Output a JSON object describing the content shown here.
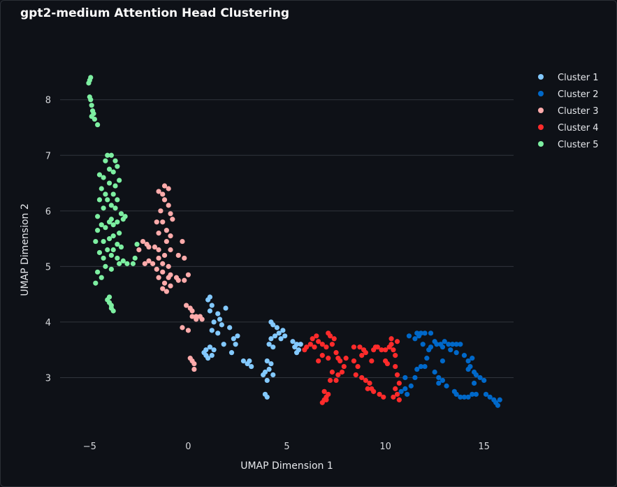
{
  "chart_data": {
    "type": "scatter",
    "title": "gpt2-medium Attention Head Clustering",
    "xlabel": "UMAP Dimension 1",
    "ylabel": "UMAP Dimension 2",
    "xlim": [
      -6.5,
      16.5
    ],
    "ylim": [
      2.0,
      8.6
    ],
    "xticks": [
      -5,
      0,
      5,
      10,
      15
    ],
    "yticks": [
      3,
      4,
      5,
      6,
      7,
      8
    ],
    "grid": "horizontal",
    "legend_position": "top-right",
    "series": [
      {
        "name": "Cluster 1",
        "color": "#83c9ff",
        "points": [
          [
            1.0,
            4.4
          ],
          [
            1.1,
            4.45
          ],
          [
            1.2,
            4.3
          ],
          [
            1.1,
            4.2
          ],
          [
            1.5,
            4.15
          ],
          [
            1.6,
            4.05
          ],
          [
            1.9,
            4.25
          ],
          [
            1.3,
            4.0
          ],
          [
            1.7,
            3.95
          ],
          [
            1.2,
            3.85
          ],
          [
            1.5,
            3.8
          ],
          [
            2.1,
            3.9
          ],
          [
            2.3,
            3.7
          ],
          [
            1.8,
            3.6
          ],
          [
            2.4,
            3.6
          ],
          [
            1.1,
            3.55
          ],
          [
            1.3,
            3.5
          ],
          [
            2.2,
            3.45
          ],
          [
            0.8,
            3.45
          ],
          [
            0.9,
            3.4
          ],
          [
            1.0,
            3.35
          ],
          [
            1.2,
            3.4
          ],
          [
            0.9,
            3.5
          ],
          [
            2.5,
            3.75
          ],
          [
            3.0,
            3.25
          ],
          [
            3.1,
            3.3
          ],
          [
            3.2,
            3.2
          ],
          [
            2.8,
            3.3
          ],
          [
            4.2,
            4.0
          ],
          [
            4.3,
            3.95
          ],
          [
            4.5,
            3.9
          ],
          [
            4.6,
            3.8
          ],
          [
            4.4,
            3.75
          ],
          [
            4.2,
            3.7
          ],
          [
            4.7,
            3.7
          ],
          [
            4.8,
            3.85
          ],
          [
            4.9,
            3.75
          ],
          [
            4.1,
            3.6
          ],
          [
            4.3,
            3.55
          ],
          [
            4.0,
            3.3
          ],
          [
            4.2,
            3.25
          ],
          [
            4.1,
            3.15
          ],
          [
            3.9,
            3.1
          ],
          [
            4.3,
            3.05
          ],
          [
            3.8,
            3.05
          ],
          [
            4.0,
            2.95
          ],
          [
            3.9,
            2.7
          ],
          [
            4.0,
            2.65
          ],
          [
            5.3,
            3.65
          ],
          [
            5.5,
            3.6
          ],
          [
            5.4,
            3.55
          ],
          [
            5.6,
            3.5
          ],
          [
            5.7,
            3.6
          ],
          [
            5.5,
            3.45
          ]
        ]
      },
      {
        "name": "Cluster 2",
        "color": "#0068c9",
        "points": [
          [
            10.8,
            2.75
          ],
          [
            11.0,
            2.8
          ],
          [
            11.1,
            2.7
          ],
          [
            11.3,
            2.85
          ],
          [
            11.5,
            3.0
          ],
          [
            11.0,
            3.0
          ],
          [
            11.6,
            3.15
          ],
          [
            11.8,
            3.2
          ],
          [
            12.0,
            3.2
          ],
          [
            12.1,
            3.35
          ],
          [
            12.2,
            3.5
          ],
          [
            12.3,
            3.55
          ],
          [
            11.9,
            3.6
          ],
          [
            11.7,
            3.75
          ],
          [
            11.5,
            3.7
          ],
          [
            11.8,
            3.8
          ],
          [
            12.0,
            3.8
          ],
          [
            12.3,
            3.8
          ],
          [
            11.6,
            3.8
          ],
          [
            11.2,
            3.75
          ],
          [
            12.5,
            3.65
          ],
          [
            12.6,
            3.6
          ],
          [
            12.8,
            3.6
          ],
          [
            12.9,
            3.55
          ],
          [
            13.0,
            3.65
          ],
          [
            13.2,
            3.6
          ],
          [
            13.4,
            3.6
          ],
          [
            13.6,
            3.6
          ],
          [
            13.8,
            3.6
          ],
          [
            13.3,
            3.5
          ],
          [
            13.6,
            3.45
          ],
          [
            14.0,
            3.4
          ],
          [
            14.2,
            3.3
          ],
          [
            14.3,
            3.2
          ],
          [
            14.5,
            3.1
          ],
          [
            14.6,
            3.05
          ],
          [
            14.8,
            3.0
          ],
          [
            15.0,
            2.95
          ],
          [
            14.4,
            3.35
          ],
          [
            14.2,
            3.15
          ],
          [
            12.5,
            3.1
          ],
          [
            12.7,
            3.0
          ],
          [
            12.9,
            2.95
          ],
          [
            13.1,
            2.85
          ],
          [
            12.7,
            2.9
          ],
          [
            13.5,
            2.75
          ],
          [
            13.6,
            2.7
          ],
          [
            13.8,
            2.65
          ],
          [
            14.0,
            2.65
          ],
          [
            14.2,
            2.65
          ],
          [
            14.4,
            2.7
          ],
          [
            14.6,
            2.7
          ],
          [
            15.1,
            2.7
          ],
          [
            15.3,
            2.65
          ],
          [
            15.5,
            2.6
          ],
          [
            15.6,
            2.55
          ],
          [
            15.7,
            2.5
          ],
          [
            15.8,
            2.6
          ],
          [
            14.5,
            2.9
          ],
          [
            12.9,
            3.3
          ]
        ]
      },
      {
        "name": "Cluster 3",
        "color": "#ffabab",
        "points": [
          [
            -1.2,
            6.45
          ],
          [
            -1.0,
            6.4
          ],
          [
            -1.5,
            6.35
          ],
          [
            -1.3,
            6.3
          ],
          [
            -1.2,
            6.2
          ],
          [
            -1.0,
            6.1
          ],
          [
            -1.4,
            6.0
          ],
          [
            -0.9,
            5.95
          ],
          [
            -0.8,
            5.85
          ],
          [
            -1.6,
            5.8
          ],
          [
            -1.3,
            5.8
          ],
          [
            -1.1,
            5.65
          ],
          [
            -1.5,
            5.6
          ],
          [
            -0.9,
            5.55
          ],
          [
            -2.3,
            5.45
          ],
          [
            -2.1,
            5.4
          ],
          [
            -2.0,
            5.35
          ],
          [
            -1.7,
            5.35
          ],
          [
            -2.5,
            5.3
          ],
          [
            -1.5,
            5.3
          ],
          [
            -1.1,
            5.45
          ],
          [
            -0.3,
            5.45
          ],
          [
            -0.9,
            5.3
          ],
          [
            -1.2,
            5.2
          ],
          [
            -1.5,
            5.15
          ],
          [
            -2.0,
            5.1
          ],
          [
            -2.2,
            5.05
          ],
          [
            -1.8,
            5.05
          ],
          [
            -1.3,
            5.05
          ],
          [
            -1.0,
            5.0
          ],
          [
            -0.5,
            5.2
          ],
          [
            -0.2,
            5.15
          ],
          [
            -1.6,
            4.95
          ],
          [
            -1.3,
            4.9
          ],
          [
            -0.9,
            4.85
          ],
          [
            -1.5,
            4.8
          ],
          [
            -1.0,
            4.8
          ],
          [
            -0.6,
            4.8
          ],
          [
            -0.5,
            4.75
          ],
          [
            -0.2,
            4.75
          ],
          [
            0.0,
            4.85
          ],
          [
            -1.2,
            4.7
          ],
          [
            -0.9,
            4.65
          ],
          [
            -1.3,
            4.6
          ],
          [
            -1.1,
            4.55
          ],
          [
            -0.1,
            4.3
          ],
          [
            0.1,
            4.25
          ],
          [
            0.2,
            4.2
          ],
          [
            0.4,
            4.1
          ],
          [
            0.6,
            4.1
          ],
          [
            0.7,
            4.05
          ],
          [
            0.4,
            4.05
          ],
          [
            0.2,
            4.1
          ],
          [
            -0.3,
            3.9
          ],
          [
            0.0,
            3.85
          ],
          [
            0.1,
            3.35
          ],
          [
            0.2,
            3.3
          ],
          [
            0.3,
            3.25
          ],
          [
            0.3,
            3.15
          ]
        ]
      },
      {
        "name": "Cluster 4",
        "color": "#ff2b2b",
        "points": [
          [
            5.9,
            3.5
          ],
          [
            6.0,
            3.55
          ],
          [
            6.2,
            3.6
          ],
          [
            6.3,
            3.7
          ],
          [
            6.5,
            3.75
          ],
          [
            6.6,
            3.65
          ],
          [
            6.4,
            3.55
          ],
          [
            6.8,
            3.6
          ],
          [
            7.0,
            3.55
          ],
          [
            7.1,
            3.8
          ],
          [
            7.2,
            3.75
          ],
          [
            7.4,
            3.7
          ],
          [
            7.3,
            3.6
          ],
          [
            6.8,
            3.4
          ],
          [
            7.1,
            3.35
          ],
          [
            6.6,
            3.3
          ],
          [
            7.5,
            3.45
          ],
          [
            7.6,
            3.35
          ],
          [
            7.7,
            3.3
          ],
          [
            7.9,
            3.2
          ],
          [
            7.8,
            3.1
          ],
          [
            7.6,
            3.05
          ],
          [
            7.5,
            2.95
          ],
          [
            7.3,
            3.1
          ],
          [
            7.2,
            2.95
          ],
          [
            6.9,
            2.75
          ],
          [
            7.1,
            2.7
          ],
          [
            6.9,
            2.6
          ],
          [
            7.0,
            2.6
          ],
          [
            6.8,
            2.55
          ],
          [
            7.0,
            2.65
          ],
          [
            8.0,
            3.35
          ],
          [
            8.4,
            3.3
          ],
          [
            8.6,
            3.2
          ],
          [
            8.8,
            3.4
          ],
          [
            8.7,
            3.55
          ],
          [
            8.9,
            3.5
          ],
          [
            9.0,
            3.45
          ],
          [
            8.5,
            3.05
          ],
          [
            8.8,
            3.0
          ],
          [
            9.0,
            2.95
          ],
          [
            9.2,
            2.9
          ],
          [
            9.3,
            2.8
          ],
          [
            9.4,
            2.75
          ],
          [
            9.1,
            2.8
          ],
          [
            9.3,
            3.3
          ],
          [
            9.4,
            3.5
          ],
          [
            9.5,
            3.55
          ],
          [
            9.6,
            3.55
          ],
          [
            9.8,
            3.5
          ],
          [
            10.0,
            3.5
          ],
          [
            10.0,
            3.3
          ],
          [
            10.2,
            3.55
          ],
          [
            10.3,
            3.6
          ],
          [
            10.4,
            3.5
          ],
          [
            10.5,
            3.4
          ],
          [
            10.6,
            3.65
          ],
          [
            10.3,
            3.7
          ],
          [
            10.1,
            3.25
          ],
          [
            10.5,
            3.2
          ],
          [
            10.6,
            3.05
          ],
          [
            10.7,
            2.9
          ],
          [
            10.5,
            2.8
          ],
          [
            10.6,
            2.7
          ],
          [
            10.4,
            2.65
          ],
          [
            10.7,
            2.6
          ],
          [
            9.9,
            2.65
          ],
          [
            9.7,
            2.7
          ],
          [
            8.4,
            3.55
          ]
        ]
      },
      {
        "name": "Cluster 5",
        "color": "#7defa1",
        "points": [
          [
            -5.0,
            8.35
          ],
          [
            -4.95,
            8.4
          ],
          [
            -5.05,
            8.3
          ],
          [
            -5.0,
            8.05
          ],
          [
            -4.95,
            8.0
          ],
          [
            -4.9,
            7.9
          ],
          [
            -4.85,
            7.8
          ],
          [
            -4.8,
            7.75
          ],
          [
            -4.9,
            7.7
          ],
          [
            -4.75,
            7.65
          ],
          [
            -4.6,
            7.55
          ],
          [
            -4.1,
            7.0
          ],
          [
            -3.9,
            7.0
          ],
          [
            -3.7,
            6.9
          ],
          [
            -4.2,
            6.9
          ],
          [
            -3.6,
            6.8
          ],
          [
            -4.0,
            6.75
          ],
          [
            -3.8,
            6.7
          ],
          [
            -4.5,
            6.65
          ],
          [
            -4.3,
            6.6
          ],
          [
            -3.5,
            6.55
          ],
          [
            -4.0,
            6.5
          ],
          [
            -3.7,
            6.45
          ],
          [
            -4.4,
            6.4
          ],
          [
            -4.2,
            6.3
          ],
          [
            -3.8,
            6.3
          ],
          [
            -4.5,
            6.2
          ],
          [
            -4.1,
            6.2
          ],
          [
            -3.6,
            6.2
          ],
          [
            -3.9,
            6.1
          ],
          [
            -4.3,
            6.05
          ],
          [
            -3.7,
            6.05
          ],
          [
            -3.4,
            5.95
          ],
          [
            -3.2,
            5.9
          ],
          [
            -4.6,
            5.9
          ],
          [
            -3.9,
            5.85
          ],
          [
            -3.3,
            5.85
          ],
          [
            -3.6,
            5.8
          ],
          [
            -4.0,
            5.8
          ],
          [
            -4.4,
            5.75
          ],
          [
            -3.8,
            5.75
          ],
          [
            -4.2,
            5.7
          ],
          [
            -4.6,
            5.65
          ],
          [
            -3.5,
            5.6
          ],
          [
            -3.8,
            5.55
          ],
          [
            -4.0,
            5.5
          ],
          [
            -4.3,
            5.45
          ],
          [
            -4.7,
            5.45
          ],
          [
            -3.6,
            5.4
          ],
          [
            -3.4,
            5.35
          ],
          [
            -4.1,
            5.3
          ],
          [
            -3.8,
            5.3
          ],
          [
            -4.5,
            5.25
          ],
          [
            -3.9,
            5.2
          ],
          [
            -4.3,
            5.15
          ],
          [
            -3.6,
            5.15
          ],
          [
            -3.3,
            5.1
          ],
          [
            -3.1,
            5.05
          ],
          [
            -3.5,
            5.05
          ],
          [
            -4.2,
            5.0
          ],
          [
            -3.9,
            4.95
          ],
          [
            -4.6,
            4.9
          ],
          [
            -4.4,
            4.8
          ],
          [
            -4.7,
            4.7
          ],
          [
            -4.0,
            4.45
          ],
          [
            -4.1,
            4.4
          ],
          [
            -4.0,
            4.35
          ],
          [
            -3.9,
            4.3
          ],
          [
            -3.9,
            4.25
          ],
          [
            -3.8,
            4.2
          ],
          [
            -2.6,
            5.4
          ],
          [
            -2.7,
            5.15
          ],
          [
            -2.8,
            5.05
          ]
        ]
      }
    ]
  }
}
